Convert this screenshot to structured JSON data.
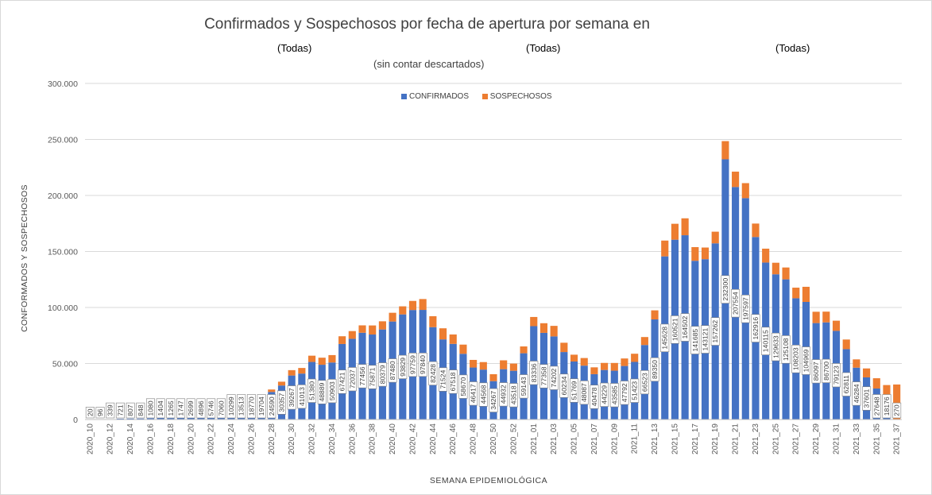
{
  "chart_data": {
    "type": "bar",
    "stacked": true,
    "title": "Confirmados y Sospechosos por fecha de apertura por semana en",
    "subtitle": "(sin contar descartados)",
    "filters": [
      "(Todas)",
      "(Todas)",
      "(Todas)"
    ],
    "xlabel": "SEMANA EPIDEMIOLÓGICA",
    "ylabel": "CONFORMADOS Y SOSPECHOSOS",
    "ylim": [
      0,
      300000
    ],
    "yticks": [
      0,
      50000,
      100000,
      150000,
      200000,
      250000,
      300000
    ],
    "ytick_labels": [
      "0",
      "50.000",
      "100.000",
      "150.000",
      "200.000",
      "250.000",
      "300.000"
    ],
    "legend_position": "top-center",
    "grid": true,
    "colors": {
      "CONFIRMADOS": "#4472c4",
      "SOSPECHOSOS": "#ed7d31"
    },
    "categories": [
      "2020_10",
      "2020_11",
      "2020_12",
      "2020_13",
      "2020_14",
      "2020_15",
      "2020_16",
      "2020_17",
      "2020_18",
      "2020_19",
      "2020_20",
      "2020_21",
      "2020_22",
      "2020_23",
      "2020_24",
      "2020_25",
      "2020_26",
      "2020_27",
      "2020_28",
      "2020_29",
      "2020_30",
      "2020_31",
      "2020_32",
      "2020_33",
      "2020_34",
      "2020_35",
      "2020_36",
      "2020_37",
      "2020_38",
      "2020_39",
      "2020_40",
      "2020_41",
      "2020_42",
      "2020_43",
      "2020_44",
      "2020_45",
      "2020_46",
      "2020_47",
      "2020_48",
      "2020_49",
      "2020_50",
      "2020_51",
      "2020_52",
      "2020_53",
      "2021_01",
      "2021_02",
      "2021_03",
      "2021_04",
      "2021_05",
      "2021_06",
      "2021_07",
      "2021_08",
      "2021_09",
      "2021_10",
      "2021_11",
      "2021_12",
      "2021_13",
      "2021_14",
      "2021_15",
      "2021_16",
      "2021_17",
      "2021_18",
      "2021_19",
      "2021_20",
      "2021_21",
      "2021_22",
      "2021_23",
      "2021_24",
      "2021_25",
      "2021_26",
      "2021_27",
      "2021_28",
      "2021_29",
      "2021_30",
      "2021_31",
      "2021_32",
      "2021_33",
      "2021_34",
      "2021_35",
      "2021_36",
      "2021_37"
    ],
    "tick_labels": [
      "2020_10",
      "2020_12",
      "2020_14",
      "2020_16",
      "2020_18",
      "2020_20",
      "2020_22",
      "2020_24",
      "2020_26",
      "2020_28",
      "2020_30",
      "2020_32",
      "2020_34",
      "2020_36",
      "2020_38",
      "2020_40",
      "2020_42",
      "2020_44",
      "2020_46",
      "2020_48",
      "2020_50",
      "2020_52",
      "2021_01",
      "2021_03",
      "2021_05",
      "2021_07",
      "2021_09",
      "2021_11",
      "2021_13",
      "2021_15",
      "2021_17",
      "2021_19",
      "2021_21",
      "2021_23",
      "2021_25",
      "2021_27",
      "2021_29",
      "2021_31",
      "2021_33",
      "2021_35",
      "2021_37"
    ],
    "series": [
      {
        "name": "CONFIRMADOS",
        "values": [
          20,
          96,
          339,
          721,
          807,
          848,
          1080,
          1404,
          1265,
          1747,
          2699,
          4896,
          5746,
          7060,
          10299,
          13513,
          18770,
          19704,
          24590,
          30357,
          39267,
          41013,
          51380,
          48889,
          50903,
          67421,
          72037,
          77456,
          75871,
          80379,
          87480,
          93829,
          97759,
          97840,
          82428,
          71524,
          67518,
          58670,
          46417,
          44568,
          34267,
          44932,
          43518,
          59143,
          83336,
          77358,
          74202,
          60234,
          51769,
          48087,
          40478,
          44229,
          43585,
          47792,
          51423,
          66523,
          89350,
          145628,
          160521,
          164502,
          141685,
          143121,
          157262,
          232300,
          207554,
          197597,
          162916,
          140115,
          129633,
          125108,
          108203,
          104969,
          86097,
          86700,
          79123,
          62811,
          46284,
          37601,
          27648,
          18176,
          270
        ]
      },
      {
        "name": "SOSPECHOSOS",
        "values": [
          0,
          0,
          0,
          0,
          0,
          0,
          0,
          0,
          0,
          0,
          0,
          0,
          0,
          0,
          0,
          0,
          900,
          1300,
          2200,
          3400,
          4800,
          5000,
          5600,
          6300,
          6600,
          6900,
          6900,
          6600,
          8100,
          7300,
          7800,
          7200,
          8100,
          9700,
          9800,
          9900,
          8400,
          8200,
          6800,
          6700,
          6200,
          7900,
          6400,
          6100,
          8200,
          8600,
          9400,
          8300,
          6100,
          6800,
          6100,
          6300,
          6900,
          6700,
          7300,
          7100,
          8100,
          14100,
          14200,
          15100,
          12200,
          10400,
          10400,
          16200,
          13700,
          13400,
          12000,
          12400,
          10300,
          10600,
          9500,
          13500,
          10100,
          9600,
          9100,
          8600,
          7400,
          8000,
          9200,
          12600,
          31000
        ]
      }
    ]
  }
}
